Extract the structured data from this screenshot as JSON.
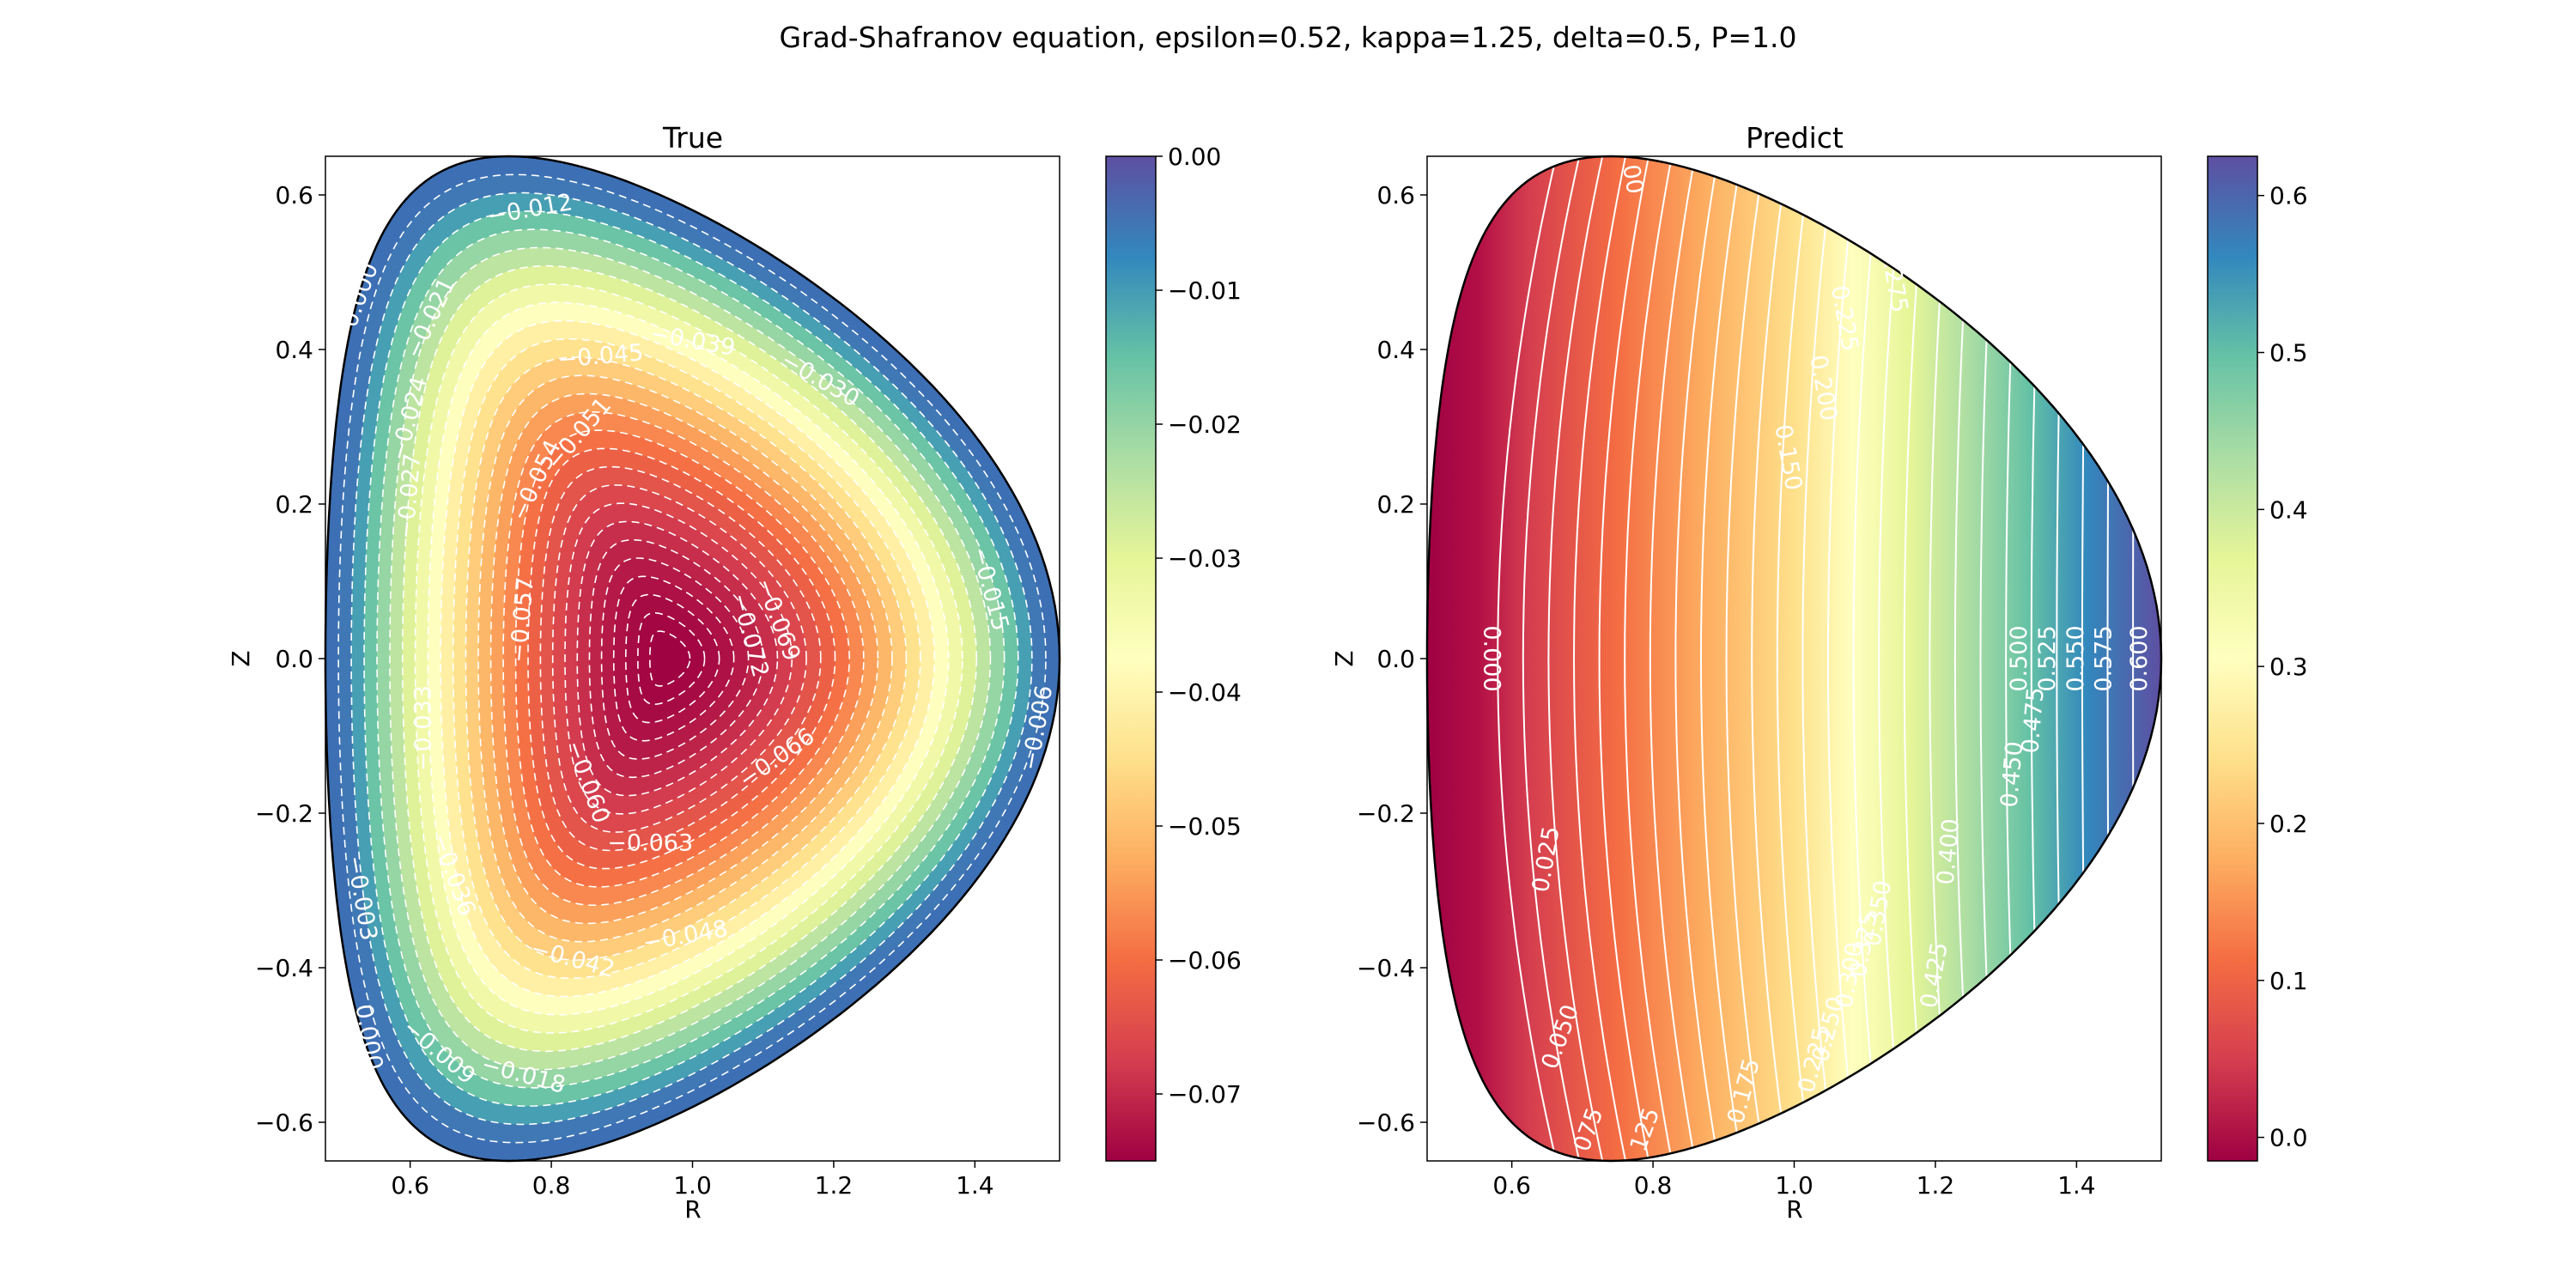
{
  "chart_data": {
    "title": "Grad-Shafranov equation, epsilon=0.52, kappa=1.25, delta=0.5, P=1.0",
    "subplots": [
      {
        "type": "contourf",
        "title": "True",
        "xlabel": "R",
        "ylabel": "Z",
        "xlim": [
          0.48,
          1.52
        ],
        "ylim": [
          -0.65,
          0.65
        ],
        "xticks": [
          "0.6",
          "0.8",
          "1.0",
          "1.2",
          "1.4"
        ],
        "yticks": [
          "−0.6",
          "−0.4",
          "−0.2",
          "0.0",
          "0.2",
          "0.4",
          "0.6"
        ],
        "colormap": "Spectral",
        "colorbar": {
          "range": [
            -0.075,
            0.0
          ],
          "ticks": [
            "0.00",
            "−0.01",
            "−0.02",
            "−0.03",
            "−0.04",
            "−0.05",
            "−0.06",
            "−0.07"
          ]
        },
        "contour_style": "dashed white",
        "contour_labels": [
          {
            "text": "−0.012",
            "R": 0.77,
            "Z": 0.58,
            "angle": -10
          },
          {
            "text": "0.000",
            "R": 0.53,
            "Z": 0.47,
            "angle": -70
          },
          {
            "text": "−0.021",
            "R": 0.63,
            "Z": 0.44,
            "angle": -65
          },
          {
            "text": "−0.039",
            "R": 1.0,
            "Z": 0.41,
            "angle": 10
          },
          {
            "text": "−0.045",
            "R": 0.87,
            "Z": 0.39,
            "angle": -5
          },
          {
            "text": "−0.030",
            "R": 1.18,
            "Z": 0.36,
            "angle": 30
          },
          {
            "text": "−0.024",
            "R": 0.6,
            "Z": 0.31,
            "angle": -75
          },
          {
            "text": "−0.051",
            "R": 0.84,
            "Z": 0.29,
            "angle": -50
          },
          {
            "text": "−0.027",
            "R": 0.6,
            "Z": 0.21,
            "angle": -85
          },
          {
            "text": "−0.054",
            "R": 0.78,
            "Z": 0.23,
            "angle": -65
          },
          {
            "text": "−0.015",
            "R": 1.42,
            "Z": 0.09,
            "angle": 75
          },
          {
            "text": "−0.069",
            "R": 1.12,
            "Z": 0.05,
            "angle": 70
          },
          {
            "text": "−0.057",
            "R": 0.76,
            "Z": 0.05,
            "angle": -85
          },
          {
            "text": "−0.072",
            "R": 1.08,
            "Z": 0.03,
            "angle": 75
          },
          {
            "text": "−0.006",
            "R": 1.49,
            "Z": -0.09,
            "angle": -80
          },
          {
            "text": "−0.066",
            "R": 1.12,
            "Z": -0.13,
            "angle": -35
          },
          {
            "text": "−0.033",
            "R": 0.62,
            "Z": -0.09,
            "angle": -90
          },
          {
            "text": "−0.060",
            "R": 0.85,
            "Z": -0.16,
            "angle": 70
          },
          {
            "text": "−0.063",
            "R": 0.94,
            "Z": -0.24,
            "angle": 0
          },
          {
            "text": "−0.003",
            "R": 0.53,
            "Z": -0.31,
            "angle": 80
          },
          {
            "text": "−0.036",
            "R": 0.66,
            "Z": -0.28,
            "angle": 70
          },
          {
            "text": "−0.048",
            "R": 0.99,
            "Z": -0.36,
            "angle": -10
          },
          {
            "text": "−0.042",
            "R": 0.83,
            "Z": -0.39,
            "angle": 15
          },
          {
            "text": "0.000",
            "R": 0.54,
            "Z": -0.49,
            "angle": 80
          },
          {
            "text": "−0.009",
            "R": 0.64,
            "Z": -0.51,
            "angle": 40
          },
          {
            "text": "−0.018",
            "R": 0.76,
            "Z": -0.54,
            "angle": 15
          }
        ]
      },
      {
        "type": "contourf",
        "title": "Predict",
        "xlabel": "R",
        "ylabel": "Z",
        "xlim": [
          0.48,
          1.52
        ],
        "ylim": [
          -0.65,
          0.65
        ],
        "xticks": [
          "0.6",
          "0.8",
          "1.0",
          "1.2",
          "1.4"
        ],
        "yticks": [
          "−0.6",
          "−0.4",
          "−0.2",
          "0.0",
          "0.2",
          "0.4",
          "0.6"
        ],
        "colormap": "Spectral",
        "colorbar": {
          "range": [
            -0.015,
            0.625
          ],
          "ticks": [
            "0.0",
            "0.1",
            "0.2",
            "0.3",
            "0.4",
            "0.5",
            "0.6"
          ]
        },
        "contour_style": "solid white",
        "contour_labels": [
          {
            "text": "0.000",
            "R": 0.57,
            "Z": 0.0,
            "angle": 90
          },
          {
            "text": "0.025",
            "R": 0.65,
            "Z": -0.26,
            "angle": -80
          },
          {
            "text": "0.050",
            "R": 0.67,
            "Z": -0.49,
            "angle": -70
          },
          {
            "text": "075",
            "R": 0.71,
            "Z": -0.61,
            "angle": -70
          },
          {
            "text": "125",
            "R": 0.79,
            "Z": -0.61,
            "angle": -70
          },
          {
            "text": "0.175",
            "R": 0.93,
            "Z": -0.56,
            "angle": -75
          },
          {
            "text": "0.225",
            "R": 1.03,
            "Z": -0.52,
            "angle": -75
          },
          {
            "text": "0.250",
            "R": 1.05,
            "Z": -0.48,
            "angle": -75
          },
          {
            "text": "0.300",
            "R": 1.08,
            "Z": -0.41,
            "angle": -80
          },
          {
            "text": "0.325",
            "R": 1.1,
            "Z": -0.37,
            "angle": -80
          },
          {
            "text": "0.350",
            "R": 1.12,
            "Z": -0.33,
            "angle": -80
          },
          {
            "text": "0.400",
            "R": 1.22,
            "Z": -0.25,
            "angle": -85
          },
          {
            "text": "0.425",
            "R": 1.2,
            "Z": -0.41,
            "angle": -80
          },
          {
            "text": "0.450",
            "R": 1.31,
            "Z": -0.15,
            "angle": -85
          },
          {
            "text": "0.475",
            "R": 1.34,
            "Z": -0.08,
            "angle": -85
          },
          {
            "text": "0.500",
            "R": 1.32,
            "Z": 0.0,
            "angle": -90
          },
          {
            "text": "0.525",
            "R": 1.36,
            "Z": 0.0,
            "angle": -90
          },
          {
            "text": "0.550",
            "R": 1.4,
            "Z": 0.0,
            "angle": -90
          },
          {
            "text": "0.575",
            "R": 1.44,
            "Z": 0.0,
            "angle": -90
          },
          {
            "text": "0.600",
            "R": 1.49,
            "Z": 0.0,
            "angle": -90
          },
          {
            "text": "0.150",
            "R": 0.99,
            "Z": 0.26,
            "angle": 80
          },
          {
            "text": "0.200",
            "R": 1.04,
            "Z": 0.35,
            "angle": 80
          },
          {
            "text": "0.225",
            "R": 1.07,
            "Z": 0.44,
            "angle": 80
          },
          {
            "text": "0.275",
            "R": 1.14,
            "Z": 0.49,
            "angle": 80
          },
          {
            "text": "00",
            "R": 0.77,
            "Z": 0.62,
            "angle": 80
          }
        ]
      }
    ]
  }
}
